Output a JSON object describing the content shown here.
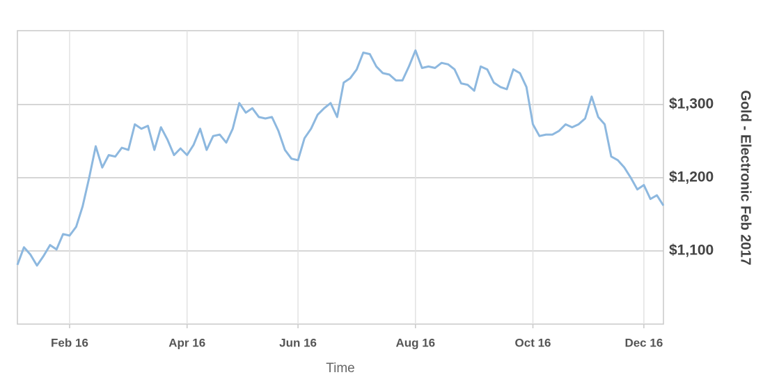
{
  "chart_data": {
    "type": "line",
    "x_label": "Time",
    "y_label": "Gold - Electronic Feb 2017",
    "categories": [
      null,
      null,
      null,
      null,
      null,
      null,
      null,
      null,
      "Feb 16",
      null,
      null,
      null,
      null,
      null,
      null,
      null,
      null,
      null,
      null,
      null,
      null,
      null,
      null,
      null,
      null,
      null,
      "Apr 16",
      null,
      null,
      null,
      null,
      null,
      null,
      null,
      null,
      null,
      null,
      null,
      null,
      null,
      null,
      null,
      null,
      "Jun 16",
      null,
      null,
      null,
      null,
      null,
      null,
      null,
      null,
      null,
      null,
      null,
      null,
      null,
      null,
      null,
      null,
      null,
      "Aug 16",
      null,
      null,
      null,
      null,
      null,
      null,
      null,
      null,
      null,
      null,
      null,
      null,
      null,
      null,
      null,
      null,
      null,
      "Oct 16",
      null,
      null,
      null,
      null,
      null,
      null,
      null,
      null,
      null,
      null,
      null,
      null,
      null,
      null,
      null,
      null,
      "Dec 16",
      null,
      null,
      null
    ],
    "series": [
      {
        "name": "Gold - Electronic Feb 2017",
        "color": "#8db8df",
        "values": [
          1081,
          1105,
          1095,
          1080,
          1093,
          1108,
          1102,
          1123,
          1121,
          1133,
          1161,
          1200,
          1243,
          1214,
          1231,
          1229,
          1241,
          1238,
          1273,
          1267,
          1271,
          1238,
          1269,
          1252,
          1231,
          1240,
          1231,
          1245,
          1267,
          1238,
          1257,
          1259,
          1248,
          1267,
          1302,
          1289,
          1295,
          1283,
          1281,
          1283,
          1264,
          1238,
          1226,
          1224,
          1254,
          1267,
          1286,
          1295,
          1302,
          1283,
          1330,
          1336,
          1348,
          1371,
          1369,
          1352,
          1343,
          1341,
          1333,
          1333,
          1352,
          1374,
          1350,
          1352,
          1350,
          1357,
          1355,
          1348,
          1329,
          1327,
          1319,
          1352,
          1348,
          1330,
          1324,
          1321,
          1348,
          1343,
          1324,
          1273,
          1257,
          1259,
          1259,
          1264,
          1273,
          1269,
          1273,
          1281,
          1311,
          1283,
          1273,
          1229,
          1224,
          1214,
          1200,
          1184,
          1190,
          1171,
          1176,
          1162
        ]
      }
    ],
    "ylim": [
      1000,
      1401
    ],
    "yticks": [
      {
        "value": 1100,
        "label": "$1,100"
      },
      {
        "value": 1200,
        "label": "$1,200"
      },
      {
        "value": 1300,
        "label": "$1,300"
      }
    ],
    "grid": true
  }
}
